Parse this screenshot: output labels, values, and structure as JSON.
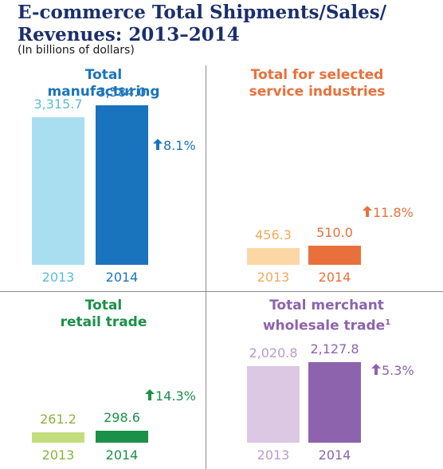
{
  "title_line1": "E-commerce Total Shipments/Sales/",
  "title_line2": "Revenues: 2013–2014",
  "subtitle": "(In billions of dollars)",
  "chart_data": [
    {
      "type": "bar",
      "panel": "total-manufacturing",
      "title_line1": "Total",
      "title_line2": "manufacturing",
      "title_sup": "",
      "categories": [
        "2013",
        "2014"
      ],
      "values": [
        3315.7,
        3584.0
      ],
      "value_labels": [
        "3,315.7",
        "3,584.0"
      ],
      "change_label": "8.1%",
      "colors": [
        "#a9def0",
        "#1a74bd"
      ],
      "title_color": "#1a74bd",
      "change_color": "#1a74bd",
      "change_icon": "arrow-up-icon"
    },
    {
      "type": "bar",
      "panel": "service-industries",
      "title_line1": "Total for selected",
      "title_line2": "service industries",
      "title_sup": "",
      "categories": [
        "2013",
        "2014"
      ],
      "values": [
        456.3,
        510.0
      ],
      "value_labels": [
        "456.3",
        "510.0"
      ],
      "change_label": "11.8%",
      "colors": [
        "#fdd6a5",
        "#e9703a"
      ],
      "title_color": "#e9703a",
      "change_color": "#e9703a",
      "change_icon": "arrow-up-icon"
    },
    {
      "type": "bar",
      "panel": "retail-trade",
      "title_line1": "Total",
      "title_line2": "retail trade",
      "title_sup": "",
      "categories": [
        "2013",
        "2014"
      ],
      "values": [
        261.2,
        298.6
      ],
      "value_labels": [
        "261.2",
        "298.6"
      ],
      "change_label": "14.3%",
      "colors": [
        "#c3dd7e",
        "#1a9148"
      ],
      "title_color": "#1a9148",
      "change_color": "#1a9148",
      "change_icon": "arrow-up-icon"
    },
    {
      "type": "bar",
      "panel": "merchant-wholesale-trade",
      "title_line1": "Total merchant",
      "title_line2": "wholesale trade",
      "title_sup": "1",
      "categories": [
        "2013",
        "2014"
      ],
      "values": [
        2020.8,
        2127.8
      ],
      "value_labels": [
        "2,020.8",
        "2,127.8"
      ],
      "change_label": "5.3%",
      "colors": [
        "#dcc8e3",
        "#8e63ad"
      ],
      "title_color": "#8e63ad",
      "change_color": "#8e63ad",
      "change_icon": "arrow-up-icon"
    }
  ]
}
